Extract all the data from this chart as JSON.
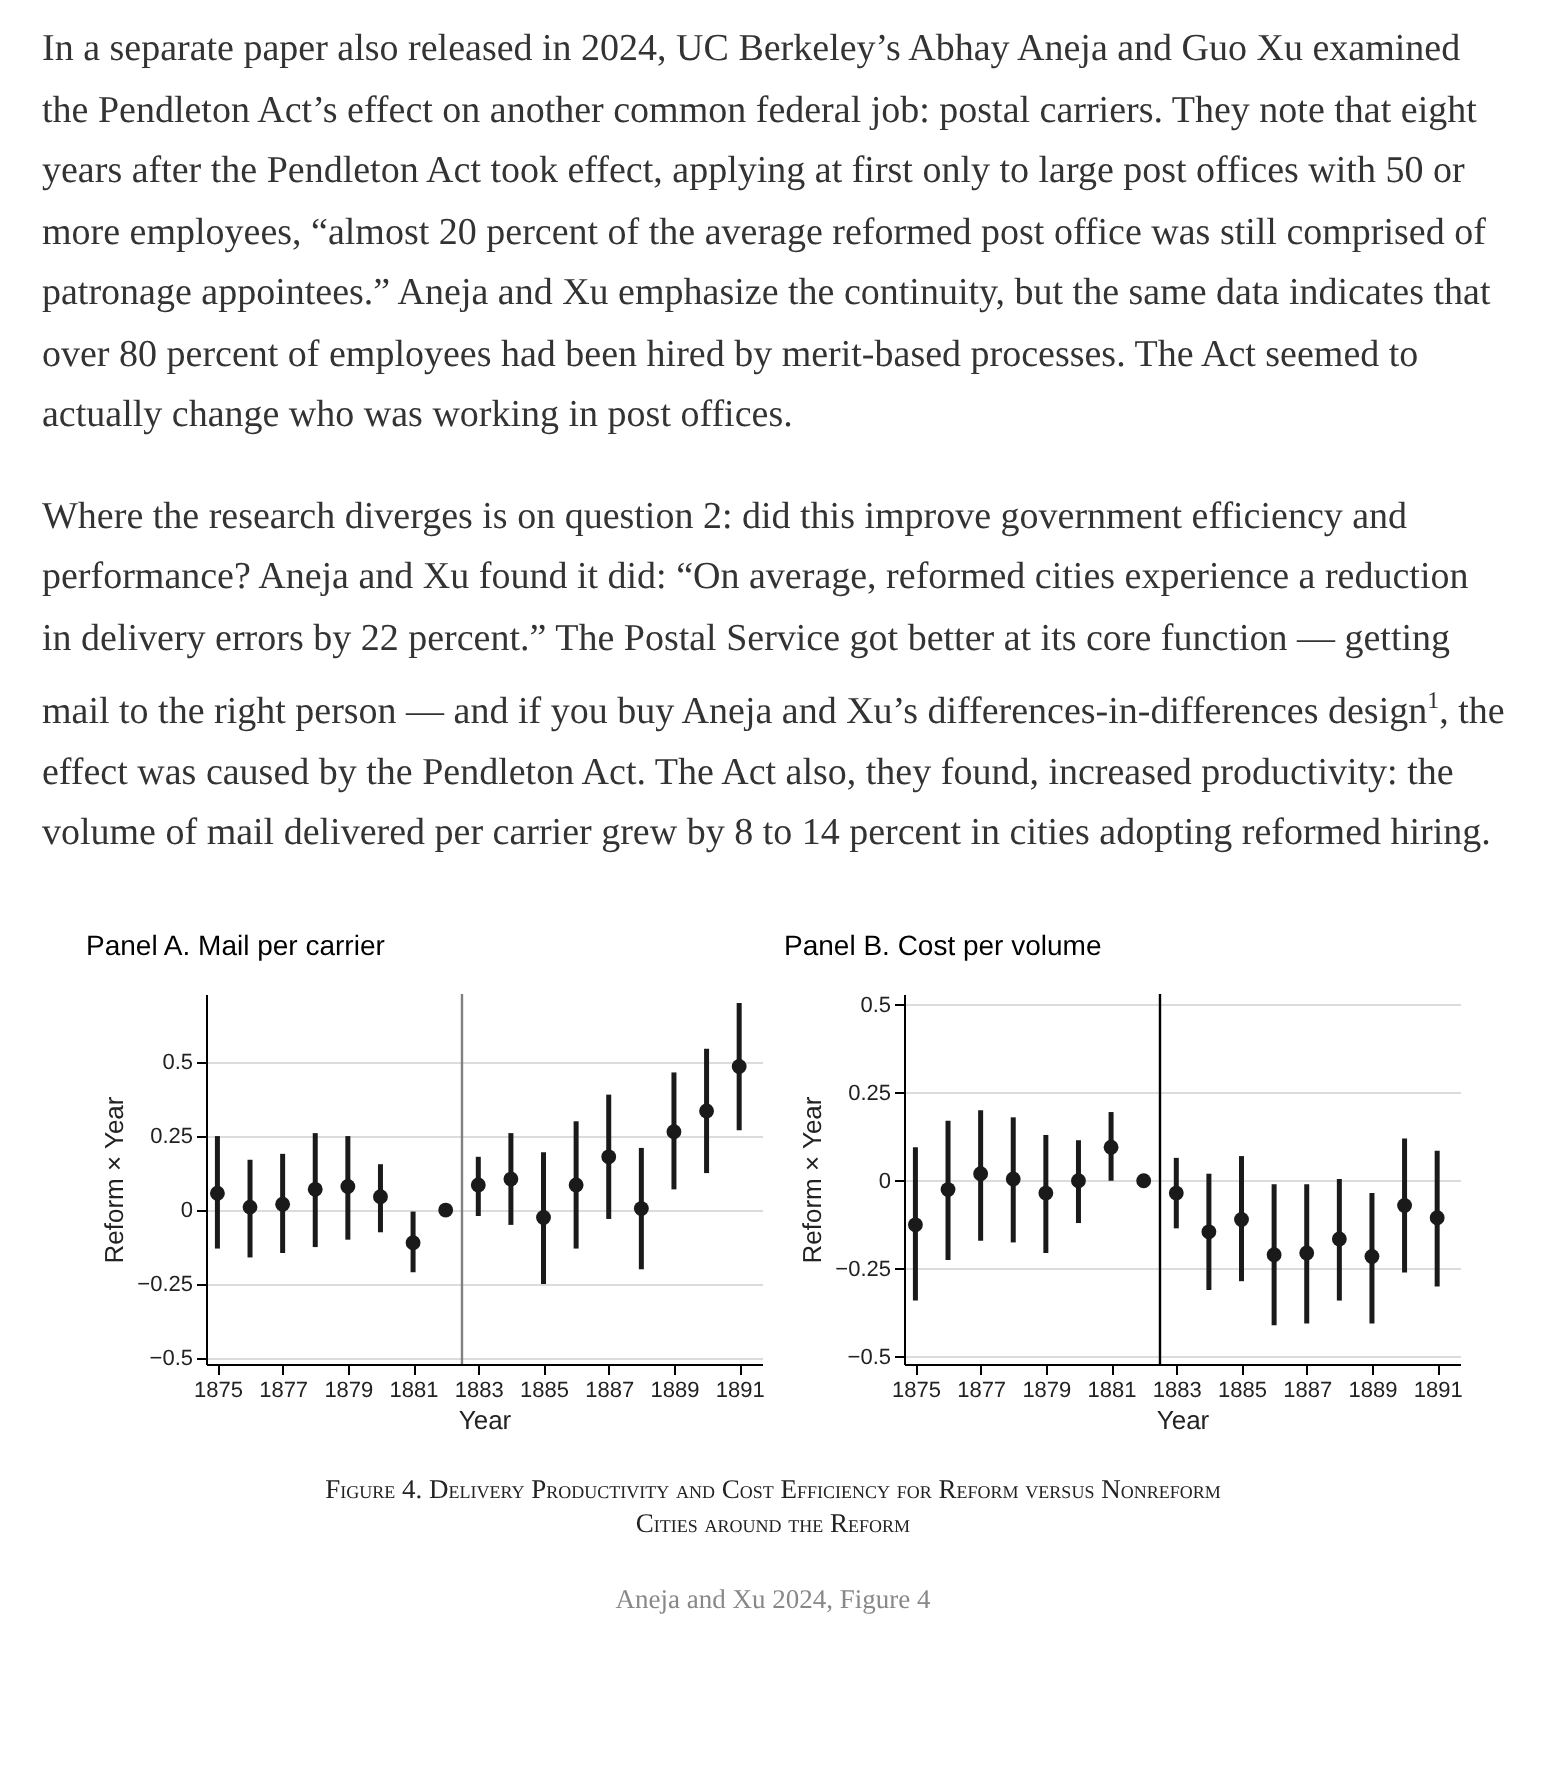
{
  "chart_data": [
    {
      "type": "scatter",
      "title": "Panel A. Mail per carrier",
      "xlabel": "Year",
      "ylabel": "Reform × Year",
      "annotations": [
        "In a separate paper also released in 2024, UC Berkeley’s Abhay Aneja and Guo Xu examined the Pendleton Act’s effect on another common federal job: postal carriers. They note that eight years after the Pendleton Act took effect, applying at first only to large post offices with 50 or more employees, “almost 20 percent of the average reformed post office was still comprised of patronage appointees.” Aneja and Xu emphasize the continuity, but the same data indicates that over 80 percent of employees had been hired by merit-based processes. The Act seemed to actually change who was working in post offices.",
        "Where the research diverges is on question 2: did this improve government efficiency and performance? Aneja and Xu found it did: “On average, reformed cities experience a reduction in delivery errors by 22 percent.” The Postal Service got better at its core function — getting mail to the right person — and if you buy Aneja and Xu’s differences-in-differences design$^{1}$, the effect was caused by the Pendleton Act. The Act also, they found, increased productivity: the volume of mail delivered per carrier grew by 8 to 14 percent in cities adopting reformed hiring."
      ],
      "x": [
        1875,
        1876,
        1877,
        1878,
        1879,
        1880,
        1881,
        1882,
        1883,
        1884,
        1885,
        1886,
        1887,
        1888,
        1889,
        1890,
        1891
      ],
      "series": [
        {
          "color": "#1a1a1a",
          "values": [
            0.057,
            0.01,
            0.02,
            0.07,
            0.08,
            0.045,
            -0.11,
            0,
            0.085,
            0.105,
            -0.025,
            0.085,
            0.18,
            0.005,
            0.265,
            0.335,
            0.485
          ],
          "errors": [
            [
              -0.13,
              0.25
            ],
            [
              -0.16,
              0.17
            ],
            [
              -0.145,
              0.19
            ],
            [
              -0.125,
              0.26
            ],
            [
              -0.1,
              0.25
            ],
            [
              -0.075,
              0.155
            ],
            [
              -0.21,
              -0.005
            ],
            null,
            [
              -0.02,
              0.18
            ],
            [
              -0.05,
              0.26
            ],
            [
              -0.25,
              0.195
            ],
            [
              -0.13,
              0.3
            ],
            [
              -0.03,
              0.39
            ],
            [
              -0.2,
              0.21
            ],
            [
              0.07,
              0.465
            ],
            [
              0.125,
              0.545
            ],
            [
              0.27,
              0.7
            ]
          ]
        }
      ],
      "xlim": [
        1874.65,
        1891.7
      ],
      "xticks": [
        1875,
        1877,
        1879,
        1881,
        1883,
        1885,
        1887,
        1889,
        1891
      ],
      "ylim": [
        -0.52,
        0.73
      ],
      "yticks": [
        -0.5,
        -0.25,
        0,
        0.25,
        0.5
      ],
      "ref_lines": [
        {
          "axis": "x",
          "value": 1882.5,
          "color": "#808080"
        }
      ],
      "grid": "y",
      "marker": "circle"
    },
    {
      "type": "scatter",
      "title": "Panel B. Cost per volume",
      "xlabel": "Year",
      "ylabel": "Reform × Year",
      "annotations": [
        "Figure 4. Delivery Productivity and Cost Efficiency for Reform versus Nonreform Cities around the Reform",
        "Aneja and Xu 2024, Figure 4"
      ],
      "x": [
        1875,
        1876,
        1877,
        1878,
        1879,
        1880,
        1881,
        1882,
        1883,
        1884,
        1885,
        1886,
        1887,
        1888,
        1889,
        1890,
        1891
      ],
      "series": [
        {
          "color": "#1a1a1a",
          "values": [
            -0.125,
            -0.025,
            0.02,
            0.005,
            -0.035,
            0,
            0.095,
            0,
            -0.035,
            -0.145,
            -0.11,
            -0.21,
            -0.205,
            -0.165,
            -0.215,
            -0.07,
            -0.105
          ],
          "errors": [
            [
              -0.34,
              0.095
            ],
            [
              -0.225,
              0.17
            ],
            [
              -0.17,
              0.2
            ],
            [
              -0.175,
              0.18
            ],
            [
              -0.205,
              0.13
            ],
            [
              -0.12,
              0.115
            ],
            [
              0,
              0.195
            ],
            null,
            [
              -0.135,
              0.065
            ],
            [
              -0.31,
              0.02
            ],
            [
              -0.285,
              0.07
            ],
            [
              -0.41,
              -0.01
            ],
            [
              -0.405,
              -0.01
            ],
            [
              -0.34,
              0.005
            ],
            [
              -0.405,
              -0.035
            ],
            [
              -0.26,
              0.12
            ],
            [
              -0.3,
              0.085
            ]
          ]
        }
      ],
      "xlim": [
        1874.65,
        1891.7
      ],
      "xticks": [
        1875,
        1877,
        1879,
        1881,
        1883,
        1885,
        1887,
        1889,
        1891
      ],
      "ylim": [
        -0.52,
        0.53
      ],
      "yticks": [
        -0.5,
        -0.25,
        0,
        0.25,
        0.5
      ],
      "ref_lines": [
        {
          "axis": "x",
          "value": 1882.5,
          "color": "#000000"
        }
      ],
      "grid": "y",
      "marker": "circle"
    }
  ]
}
